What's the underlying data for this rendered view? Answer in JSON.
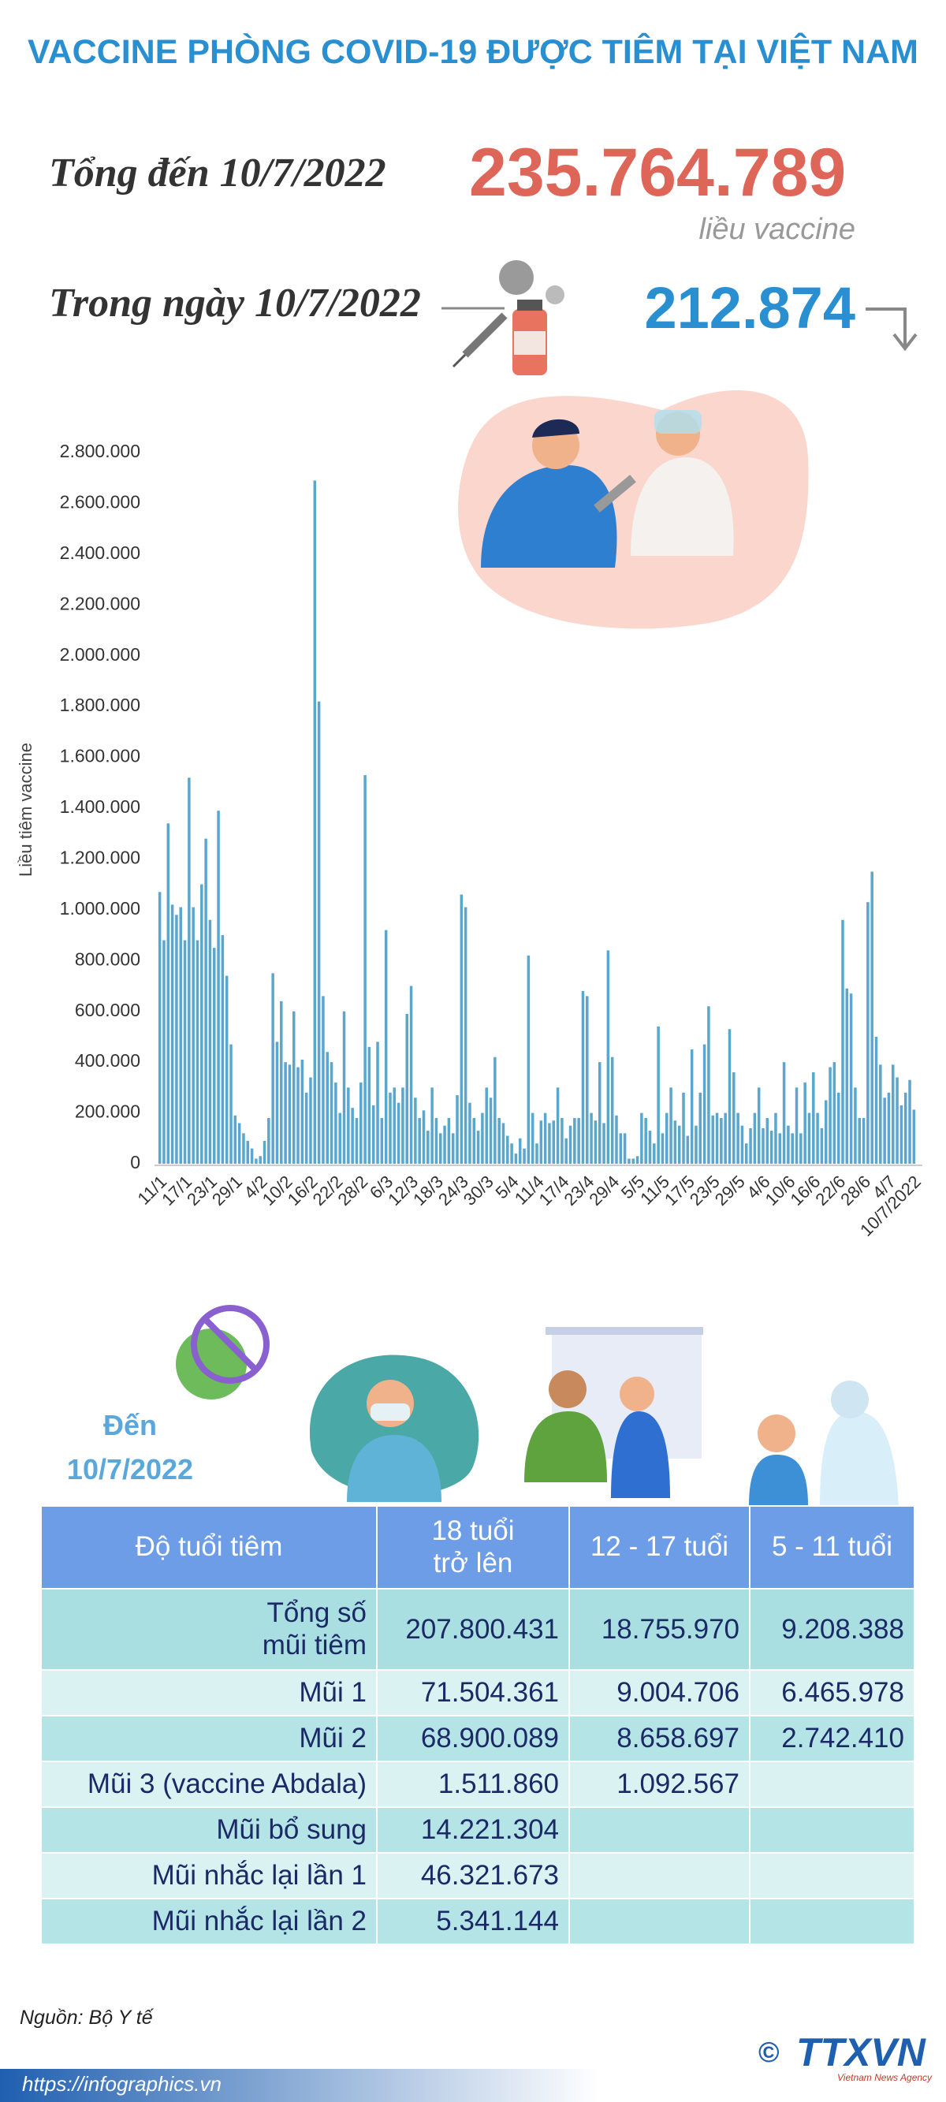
{
  "header": {
    "title": "VACCINE PHÒNG COVID-19 ĐƯỢC TIÊM TẠI VIỆT NAM",
    "total_label": "Tổng đến 10/7/2022",
    "total_value": "235.764.789",
    "total_unit": "liều vaccine",
    "day_label": "Trong ngày 10/7/2022",
    "day_value": "212.874"
  },
  "chart_data": {
    "type": "bar",
    "ylabel": "Liều tiêm vaccine",
    "color": "#5aa6cc",
    "grid": false,
    "ylim": [
      0,
      2800000
    ],
    "yticks": [
      0,
      {
        "value": 200000,
        "label": "200.000"
      },
      {
        "value": 400000,
        "label": "400.000"
      },
      {
        "value": 600000,
        "label": "600.000"
      },
      {
        "value": 800000,
        "label": "800.000"
      },
      {
        "value": 1000000,
        "label": "1.000.000"
      },
      {
        "value": 1200000,
        "label": "1.200.000"
      },
      {
        "value": 1400000,
        "label": "1.400.000"
      },
      {
        "value": 1600000,
        "label": "1.600.000"
      },
      {
        "value": 1800000,
        "label": "1.800.000"
      },
      {
        "value": 2000000,
        "label": "2.000.000"
      },
      {
        "value": 2200000,
        "label": "2.200.000"
      },
      {
        "value": 2400000,
        "label": "2.400.000"
      },
      {
        "value": 2600000,
        "label": "2.600.000"
      },
      {
        "value": 2800000,
        "label": "2.800.000"
      }
    ],
    "categories": [
      "11/1",
      null,
      null,
      null,
      null,
      null,
      "17/1",
      null,
      null,
      null,
      null,
      null,
      "23/1",
      null,
      null,
      null,
      null,
      null,
      "29/1",
      null,
      null,
      null,
      null,
      null,
      "4/2",
      null,
      null,
      null,
      null,
      null,
      "10/2",
      null,
      null,
      null,
      null,
      null,
      "16/2",
      null,
      null,
      null,
      null,
      null,
      "22/2",
      null,
      null,
      null,
      null,
      null,
      "28/2",
      null,
      null,
      null,
      null,
      null,
      "6/3",
      null,
      null,
      null,
      null,
      null,
      "12/3",
      null,
      null,
      null,
      null,
      null,
      "18/3",
      null,
      null,
      null,
      null,
      null,
      "24/3",
      null,
      null,
      null,
      null,
      null,
      "30/3",
      null,
      null,
      null,
      null,
      null,
      "5/4",
      null,
      null,
      null,
      null,
      null,
      "11/4",
      null,
      null,
      null,
      null,
      null,
      "17/4",
      null,
      null,
      null,
      null,
      null,
      "23/4",
      null,
      null,
      null,
      null,
      null,
      "29/4",
      null,
      null,
      null,
      null,
      null,
      "5/5",
      null,
      null,
      null,
      null,
      null,
      "11/5",
      null,
      null,
      null,
      null,
      null,
      "17/5",
      null,
      null,
      null,
      null,
      null,
      "23/5",
      null,
      null,
      null,
      null,
      null,
      "29/5",
      null,
      null,
      null,
      null,
      null,
      "4/6",
      null,
      null,
      null,
      null,
      null,
      "10/6",
      null,
      null,
      null,
      null,
      null,
      "16/6",
      null,
      null,
      null,
      null,
      null,
      "22/6",
      null,
      null,
      null,
      null,
      null,
      "28/6",
      null,
      null,
      null,
      null,
      null,
      "4/7",
      null,
      null,
      null,
      null,
      null,
      "10/7/2022"
    ],
    "values": [
      1070000,
      880000,
      1340000,
      1020000,
      980000,
      1010000,
      880000,
      1520000,
      1010000,
      880000,
      1100000,
      1280000,
      960000,
      850000,
      1390000,
      900000,
      740000,
      470000,
      190000,
      160000,
      120000,
      90000,
      60000,
      20000,
      30000,
      90000,
      180000,
      750000,
      480000,
      640000,
      400000,
      390000,
      600000,
      380000,
      410000,
      280000,
      340000,
      2690000,
      1820000,
      660000,
      440000,
      400000,
      320000,
      200000,
      600000,
      300000,
      220000,
      180000,
      320000,
      1530000,
      460000,
      230000,
      480000,
      180000,
      920000,
      280000,
      300000,
      240000,
      300000,
      590000,
      700000,
      260000,
      180000,
      210000,
      130000,
      300000,
      180000,
      120000,
      150000,
      180000,
      120000,
      270000,
      1060000,
      1010000,
      240000,
      180000,
      130000,
      200000,
      300000,
      260000,
      420000,
      180000,
      160000,
      110000,
      80000,
      40000,
      100000,
      60000,
      820000,
      200000,
      80000,
      170000,
      200000,
      160000,
      170000,
      300000,
      180000,
      100000,
      150000,
      180000,
      180000,
      680000,
      660000,
      200000,
      170000,
      400000,
      160000,
      840000,
      420000,
      190000,
      120000,
      120000,
      20000,
      20000,
      30000,
      200000,
      180000,
      130000,
      80000,
      540000,
      120000,
      200000,
      300000,
      170000,
      150000,
      280000,
      110000,
      450000,
      150000,
      280000,
      470000,
      620000,
      190000,
      200000,
      180000,
      200000,
      530000,
      360000,
      200000,
      150000,
      80000,
      140000,
      200000,
      300000,
      140000,
      180000,
      130000,
      200000,
      120000,
      400000,
      150000,
      120000,
      300000,
      120000,
      320000,
      200000,
      360000,
      200000,
      140000,
      250000,
      380000,
      400000,
      280000,
      960000,
      690000,
      670000,
      300000,
      180000,
      180000,
      1030000,
      1150000,
      500000,
      390000,
      260000,
      280000,
      390000,
      340000,
      230000,
      280000,
      330000,
      212874
    ]
  },
  "section": {
    "date_line_1": "Đến",
    "date_line_2": "10/7/2022"
  },
  "table": {
    "header": [
      "Độ tuổi tiêm",
      "18 tuổi trở lên",
      "12 - 17 tuổi",
      "5 - 11 tuổi"
    ],
    "rows": [
      [
        "Tổng số mũi tiêm",
        "207.800.431",
        "18.755.970",
        "9.208.388"
      ],
      [
        "Mũi 1",
        "71.504.361",
        "9.004.706",
        "6.465.978"
      ],
      [
        "Mũi 2",
        "68.900.089",
        "8.658.697",
        "2.742.410"
      ],
      [
        "Mũi 3 (vaccine Abdala)",
        "1.511.860",
        "1.092.567"
      ],
      [
        "Mũi bổ sung",
        "14.221.304"
      ],
      [
        "Mũi nhắc lại lần 1",
        "46.321.673"
      ],
      [
        "Mũi nhắc lại lần 2",
        "5.341.144"
      ]
    ]
  },
  "footer": {
    "source": "Nguồn: Bộ Y tế",
    "url": "https://infographics.vn",
    "copyright": "©",
    "logo": "TTXVN",
    "logo_sub": "Vietnam News Agency"
  }
}
